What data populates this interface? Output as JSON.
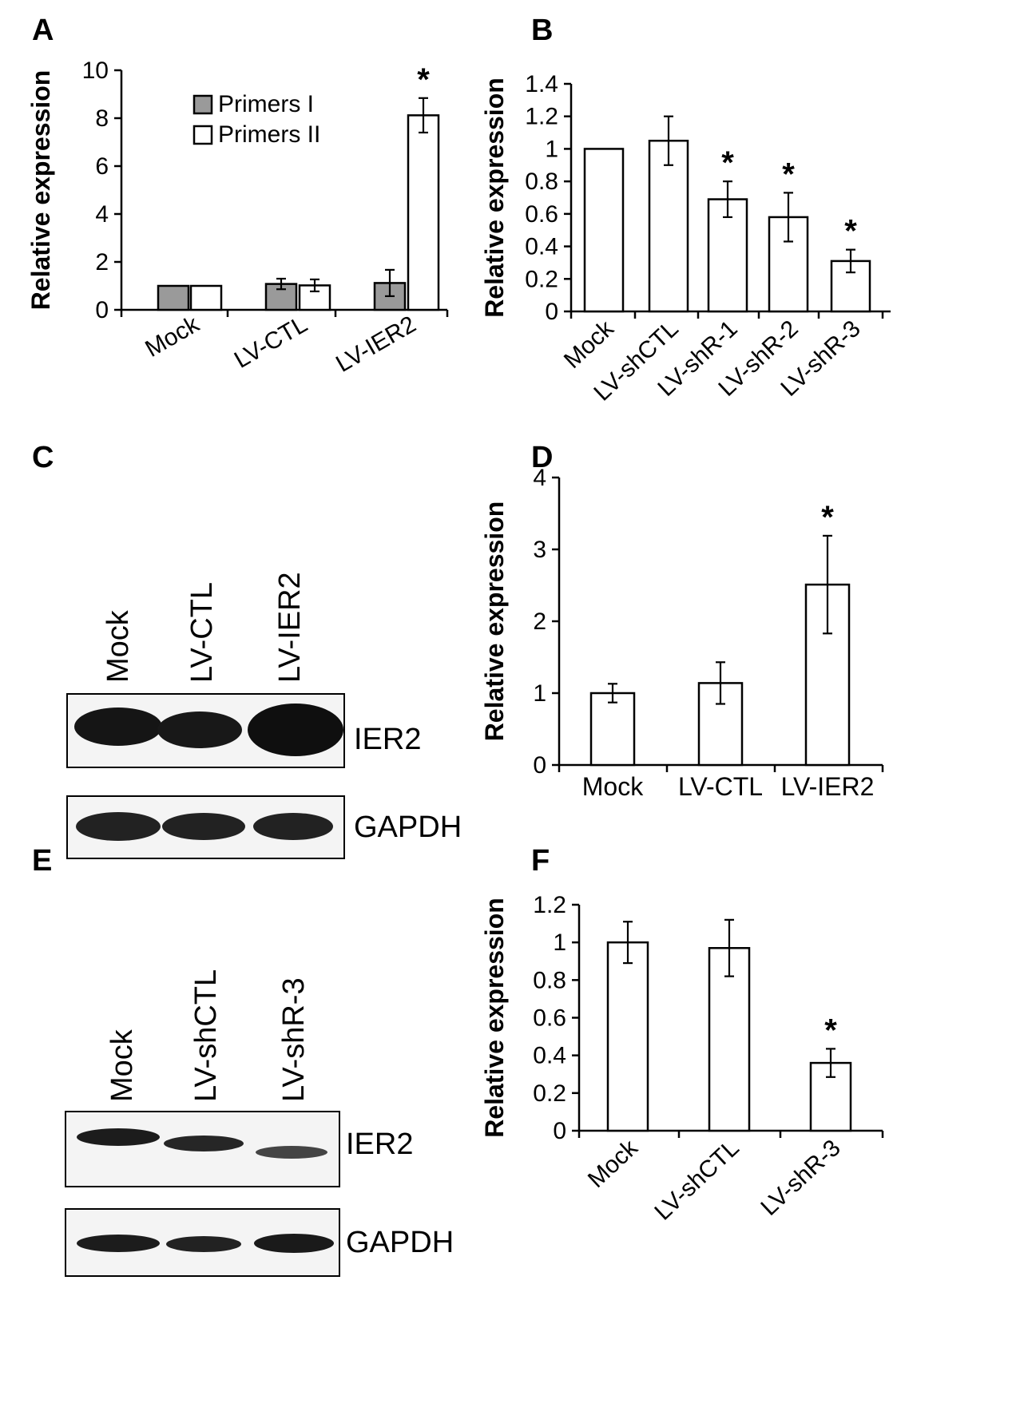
{
  "panels": {
    "A": "A",
    "B": "B",
    "C": "C",
    "D": "D",
    "E": "E",
    "F": "F"
  },
  "blot_c": {
    "lanes": [
      "Mock",
      "LV-CTL",
      "LV-IER2"
    ],
    "rows": [
      "IER2",
      "GAPDH"
    ]
  },
  "blot_e": {
    "lanes": [
      "Mock",
      "LV-shCTL",
      "LV-shR-3"
    ],
    "rows": [
      "IER2",
      "GAPDH"
    ]
  },
  "colors": {
    "primers_i": "#9a9a9a",
    "primers_ii": "#ffffff",
    "bar": "#ffffff"
  },
  "chart_data": [
    {
      "panel": "A",
      "type": "bar",
      "ylabel": "Relative expression",
      "ylim": [
        0,
        10
      ],
      "yticks": [
        "0",
        "2",
        "4",
        "6",
        "8",
        "10"
      ],
      "categories": [
        "Mock",
        "LV-CTL",
        "LV-IER2"
      ],
      "series": [
        {
          "name": "Primers I",
          "values": [
            1.0,
            1.08,
            1.12
          ],
          "errors": [
            0,
            0.22,
            0.55
          ]
        },
        {
          "name": "Primers II",
          "values": [
            1.0,
            1.02,
            8.12
          ],
          "errors": [
            0,
            0.25,
            0.72
          ]
        }
      ],
      "significance": [
        "",
        "",
        "*"
      ],
      "legend": "top"
    },
    {
      "panel": "B",
      "type": "bar",
      "ylabel": "Relative expression",
      "ylim": [
        0,
        1.4
      ],
      "yticks": [
        "0",
        "0.2",
        "0.4",
        "0.6",
        "0.8",
        "1",
        "1.2",
        "1.4"
      ],
      "categories": [
        "Mock",
        "LV-shCTL",
        "LV-shR-1",
        "LV-shR-2",
        "LV-shR-3"
      ],
      "values": [
        1.0,
        1.05,
        0.69,
        0.58,
        0.31
      ],
      "errors": [
        0,
        0.15,
        0.11,
        0.15,
        0.07
      ],
      "significance": [
        "",
        "",
        "*",
        "*",
        "*"
      ]
    },
    {
      "panel": "D",
      "type": "bar",
      "ylabel": "Relative expression",
      "ylim": [
        0,
        4
      ],
      "yticks": [
        "0",
        "1",
        "2",
        "3",
        "4"
      ],
      "categories": [
        "Mock",
        "LV-CTL",
        "LV-IER2"
      ],
      "values": [
        1.0,
        1.14,
        2.51
      ],
      "errors": [
        0.13,
        0.29,
        0.68
      ],
      "significance": [
        "",
        "",
        "*"
      ]
    },
    {
      "panel": "F",
      "type": "bar",
      "ylabel": "Relative expression",
      "ylim": [
        0,
        1.2
      ],
      "yticks": [
        "0",
        "0.2",
        "0.4",
        "0.6",
        "0.8",
        "1",
        "1.2"
      ],
      "categories": [
        "Mock",
        "LV-shCTL",
        "LV-shR-3"
      ],
      "values": [
        1.0,
        0.97,
        0.36
      ],
      "errors": [
        0.11,
        0.15,
        0.075
      ],
      "significance": [
        "",
        "",
        "*"
      ]
    }
  ]
}
